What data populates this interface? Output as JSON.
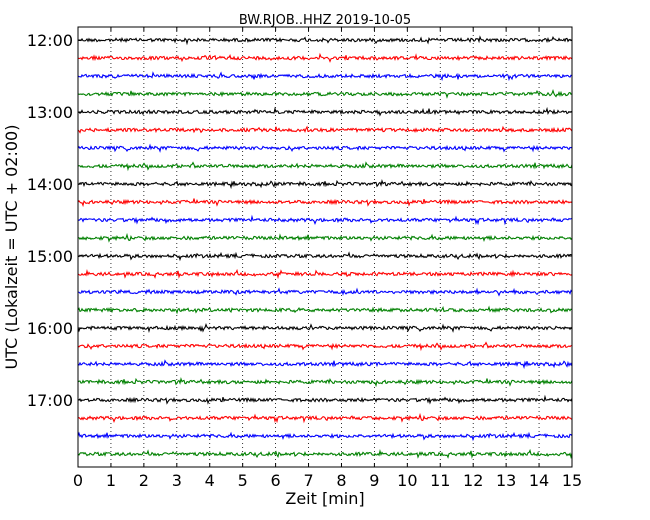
{
  "chart_data": {
    "type": "line",
    "title": "BW.RJOB..HHZ 2019-10-05",
    "xlabel": "Zeit  [min]",
    "ylabel": "UTC (Lokalzeit = UTC + 02:00)",
    "xlim": [
      0,
      15
    ],
    "x_ticks": [
      "0",
      "1",
      "2",
      "3",
      "4",
      "5",
      "6",
      "7",
      "8",
      "9",
      "10",
      "11",
      "12",
      "13",
      "14",
      "15"
    ],
    "y_tick_labels": [
      "12:00",
      "13:00",
      "14:00",
      "15:00",
      "16:00",
      "17:00"
    ],
    "grid": "vertical dotted lines at each minute",
    "trace_colors": [
      "#000000",
      "#ff0000",
      "#0000ff",
      "#008000"
    ],
    "traces": [
      {
        "start": "12:00"
      },
      {
        "start": "12:15"
      },
      {
        "start": "12:30"
      },
      {
        "start": "12:45"
      },
      {
        "start": "13:00"
      },
      {
        "start": "13:15"
      },
      {
        "start": "13:30"
      },
      {
        "start": "13:45"
      },
      {
        "start": "14:00"
      },
      {
        "start": "14:15"
      },
      {
        "start": "14:30"
      },
      {
        "start": "14:45"
      },
      {
        "start": "15:00"
      },
      {
        "start": "15:15"
      },
      {
        "start": "15:30"
      },
      {
        "start": "15:45"
      },
      {
        "start": "16:00"
      },
      {
        "start": "16:15"
      },
      {
        "start": "16:30"
      },
      {
        "start": "16:45"
      },
      {
        "start": "17:00"
      },
      {
        "start": "17:15"
      },
      {
        "start": "17:30"
      },
      {
        "start": "17:45"
      }
    ]
  }
}
